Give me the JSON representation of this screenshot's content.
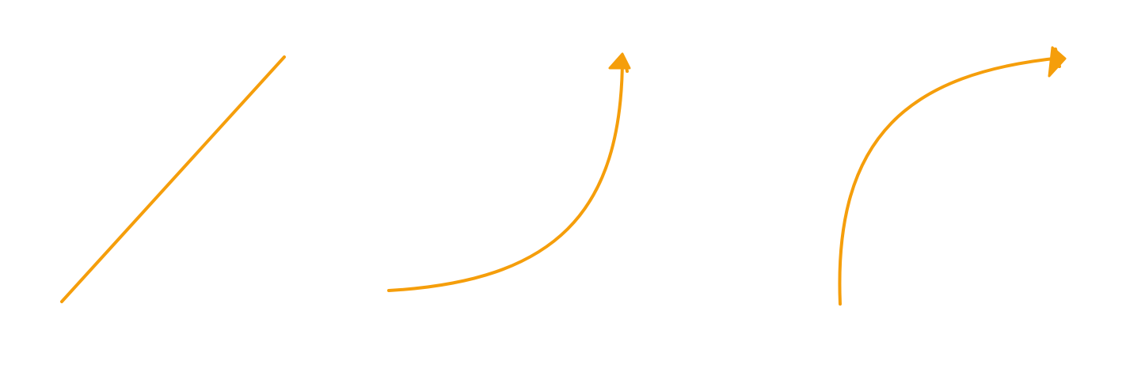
{
  "canvas": {
    "background": "#ffffff",
    "stroke_color": "#f59e0b"
  },
  "shapes": [
    {
      "name": "straight-line",
      "kind": "line",
      "arrowhead": false
    },
    {
      "name": "curved-arrow-concave",
      "kind": "curve",
      "arrowhead": true
    },
    {
      "name": "curved-arrow-convex",
      "kind": "curve",
      "arrowhead": true
    }
  ]
}
